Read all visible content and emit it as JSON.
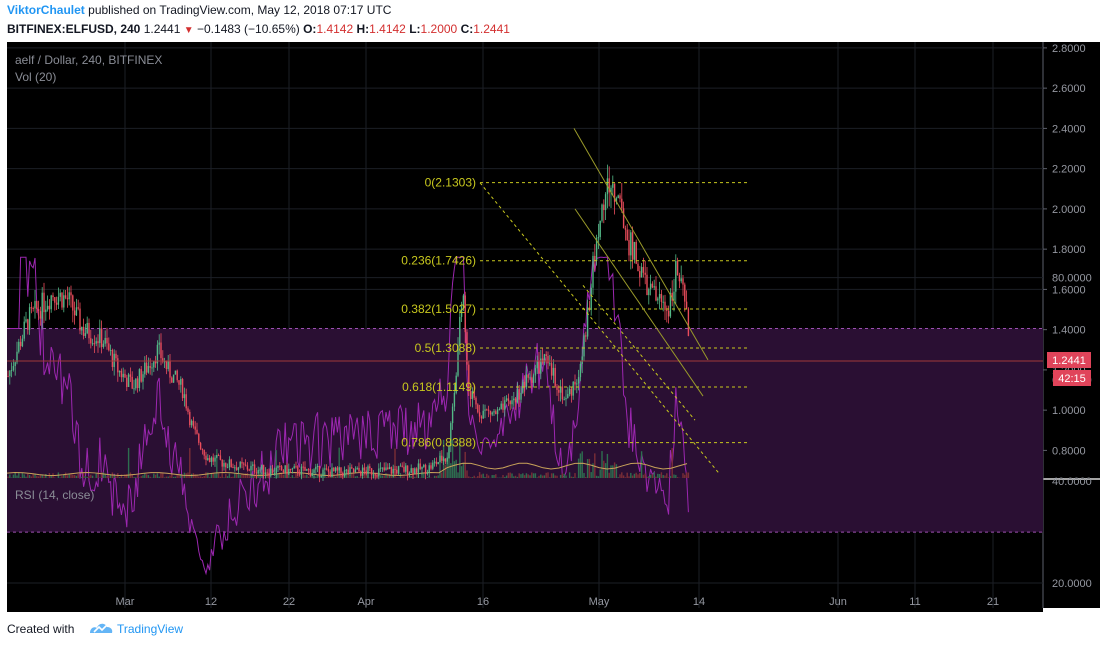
{
  "header": {
    "author": "ViktorChaulet",
    "published_text": "published on TradingView.com, May 12, 2018 07:17 UTC",
    "symbol": "BITFINEX:ELFUSD, 240",
    "last": "1.2441",
    "change": "−0.1483 (−10.65%)",
    "o_label": "O:",
    "o_value": "1.4142",
    "h_label": "H:",
    "h_value": "1.4142",
    "l_label": "L:",
    "l_value": "1.2000",
    "c_label": "C:",
    "c_value": "1.2441"
  },
  "legend": {
    "title": "aelf / Dollar, 240, BITFINEX",
    "volume": "Vol (20)",
    "rsi": "RSI (14, close)"
  },
  "price_badge": {
    "price": "1.2441",
    "countdown": "42:15"
  },
  "footer": {
    "created_with": "Created with",
    "brand": "TradingView"
  },
  "colors": {
    "background": "#000000",
    "up": "#53b987",
    "down": "#eb4d5c",
    "fib": "#c8c81e",
    "channel": "#9a9a2a",
    "rsi_line": "#9c27b0",
    "rsi_band": "#2a0f33",
    "price_line": "#a03a3a"
  },
  "chart_data": {
    "type": "candlestick",
    "title": "aelf / Dollar, 240, BITFINEX",
    "price_axis_ticks": [
      "0.8000",
      "1.0000",
      "1.2000",
      "1.4000",
      "1.6000",
      "1.8000",
      "2.0000",
      "2.2000",
      "2.4000",
      "2.6000",
      "2.8000"
    ],
    "price_range": [
      0.68,
      2.82
    ],
    "time_axis_ticks": [
      "Mar",
      "12",
      "22",
      "Apr",
      "16",
      "May",
      "14",
      "Jun",
      "11",
      "21"
    ],
    "last_price": 1.2441,
    "fibonacci": [
      {
        "label": "0(2.1303)",
        "level": 2.1303
      },
      {
        "label": "0.236(1.7426)",
        "level": 1.7426
      },
      {
        "label": "0.382(1.5027)",
        "level": 1.5027
      },
      {
        "label": "0.5(1.3088)",
        "level": 1.3088
      },
      {
        "label": "0.618(1.1149)",
        "level": 1.1149
      },
      {
        "label": "0.786(0.8388)",
        "level": 0.8388
      }
    ],
    "price_path": [
      [
        0,
        1.17
      ],
      [
        20,
        1.45
      ],
      [
        45,
        1.58
      ],
      [
        60,
        1.55
      ],
      [
        75,
        1.4
      ],
      [
        95,
        1.35
      ],
      [
        110,
        1.2
      ],
      [
        125,
        1.12
      ],
      [
        140,
        1.22
      ],
      [
        150,
        1.3
      ],
      [
        160,
        1.2
      ],
      [
        175,
        1.1
      ],
      [
        185,
        0.9
      ],
      [
        200,
        0.76
      ],
      [
        215,
        0.74
      ],
      [
        230,
        0.72
      ],
      [
        260,
        0.7
      ],
      [
        290,
        0.7
      ],
      [
        330,
        0.69
      ],
      [
        380,
        0.7
      ],
      [
        420,
        0.71
      ],
      [
        440,
        0.78
      ],
      [
        448,
        1.2
      ],
      [
        455,
        1.6
      ],
      [
        460,
        1.1
      ],
      [
        470,
        1.0
      ],
      [
        490,
        0.98
      ],
      [
        505,
        1.05
      ],
      [
        520,
        1.15
      ],
      [
        535,
        1.25
      ],
      [
        548,
        1.15
      ],
      [
        558,
        1.05
      ],
      [
        572,
        1.2
      ],
      [
        580,
        1.5
      ],
      [
        590,
        1.9
      ],
      [
        600,
        2.12
      ],
      [
        610,
        2.05
      ],
      [
        620,
        1.85
      ],
      [
        630,
        1.72
      ],
      [
        640,
        1.6
      ],
      [
        650,
        1.55
      ],
      [
        660,
        1.5
      ],
      [
        668,
        1.7
      ],
      [
        676,
        1.55
      ],
      [
        683,
        1.28
      ]
    ],
    "rsi": {
      "name": "RSI (14, close)",
      "axis_ticks": [
        "20.0000",
        "40.0000",
        "60.0000",
        "80.0000"
      ],
      "range": [
        15,
        86
      ],
      "upper_band": 70,
      "lower_band": 30
    },
    "grid": true
  }
}
